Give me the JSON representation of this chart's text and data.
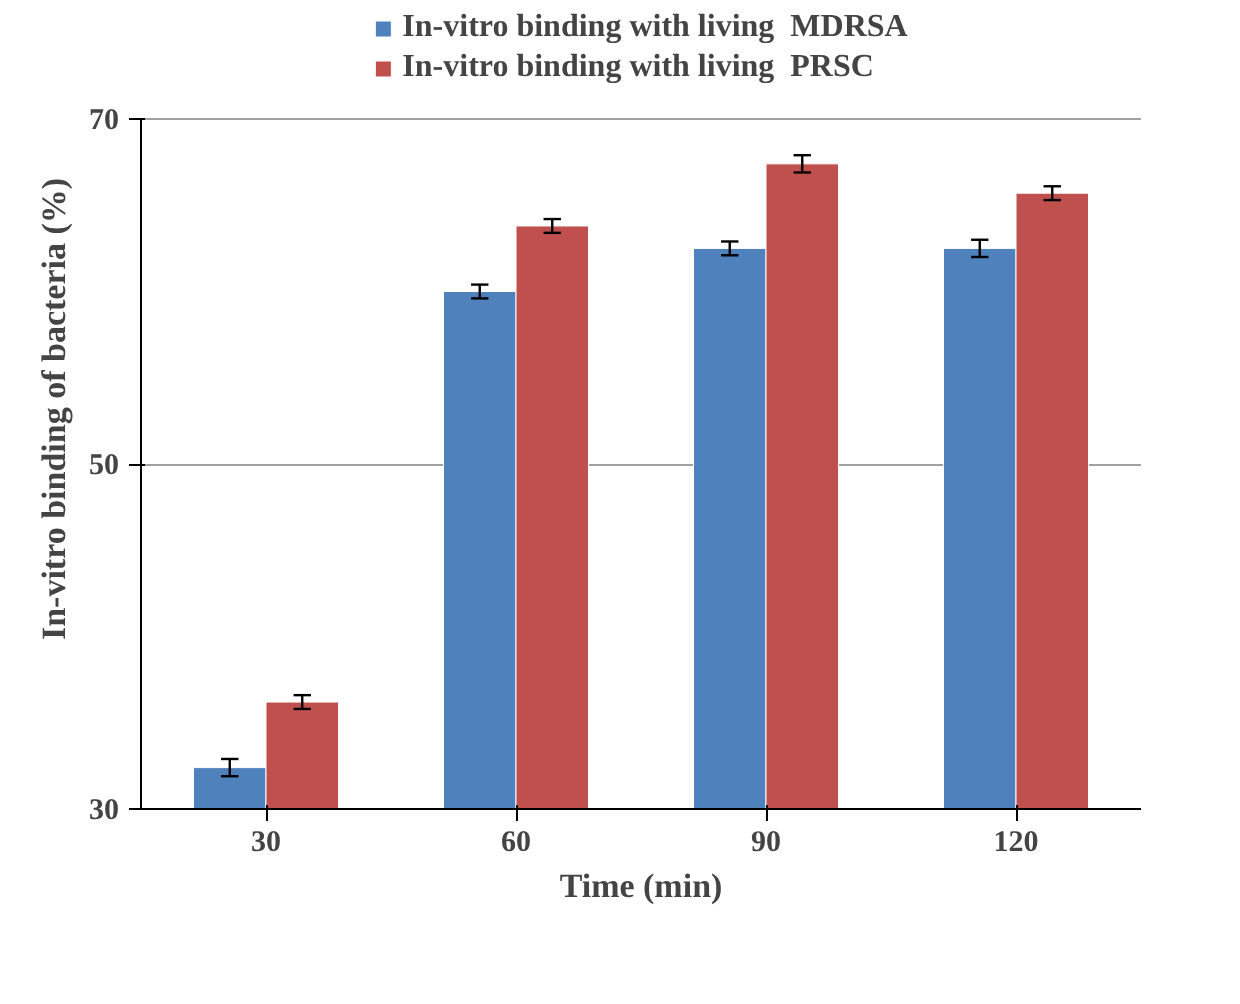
{
  "chart_data": {
    "type": "bar",
    "categories": [
      "30",
      "60",
      "90",
      "120"
    ],
    "xlabel": "Time (min)",
    "ylabel": "In-vitro binding of bacteria (%)",
    "ylim": [
      30,
      70
    ],
    "yticks": [
      30,
      50,
      70
    ],
    "grid": "y",
    "legend": "top",
    "series": [
      {
        "name": "In-vitro binding with living  MDRSA",
        "color": "#4f81bd",
        "values": [
          32.4,
          60.0,
          62.5,
          62.5
        ],
        "errors": [
          0.5,
          0.4,
          0.4,
          0.5
        ]
      },
      {
        "name": "In-vitro binding with living  PRSC",
        "color": "#c0504d",
        "values": [
          36.2,
          63.8,
          67.4,
          65.7
        ],
        "errors": [
          0.4,
          0.4,
          0.5,
          0.4
        ]
      }
    ]
  }
}
